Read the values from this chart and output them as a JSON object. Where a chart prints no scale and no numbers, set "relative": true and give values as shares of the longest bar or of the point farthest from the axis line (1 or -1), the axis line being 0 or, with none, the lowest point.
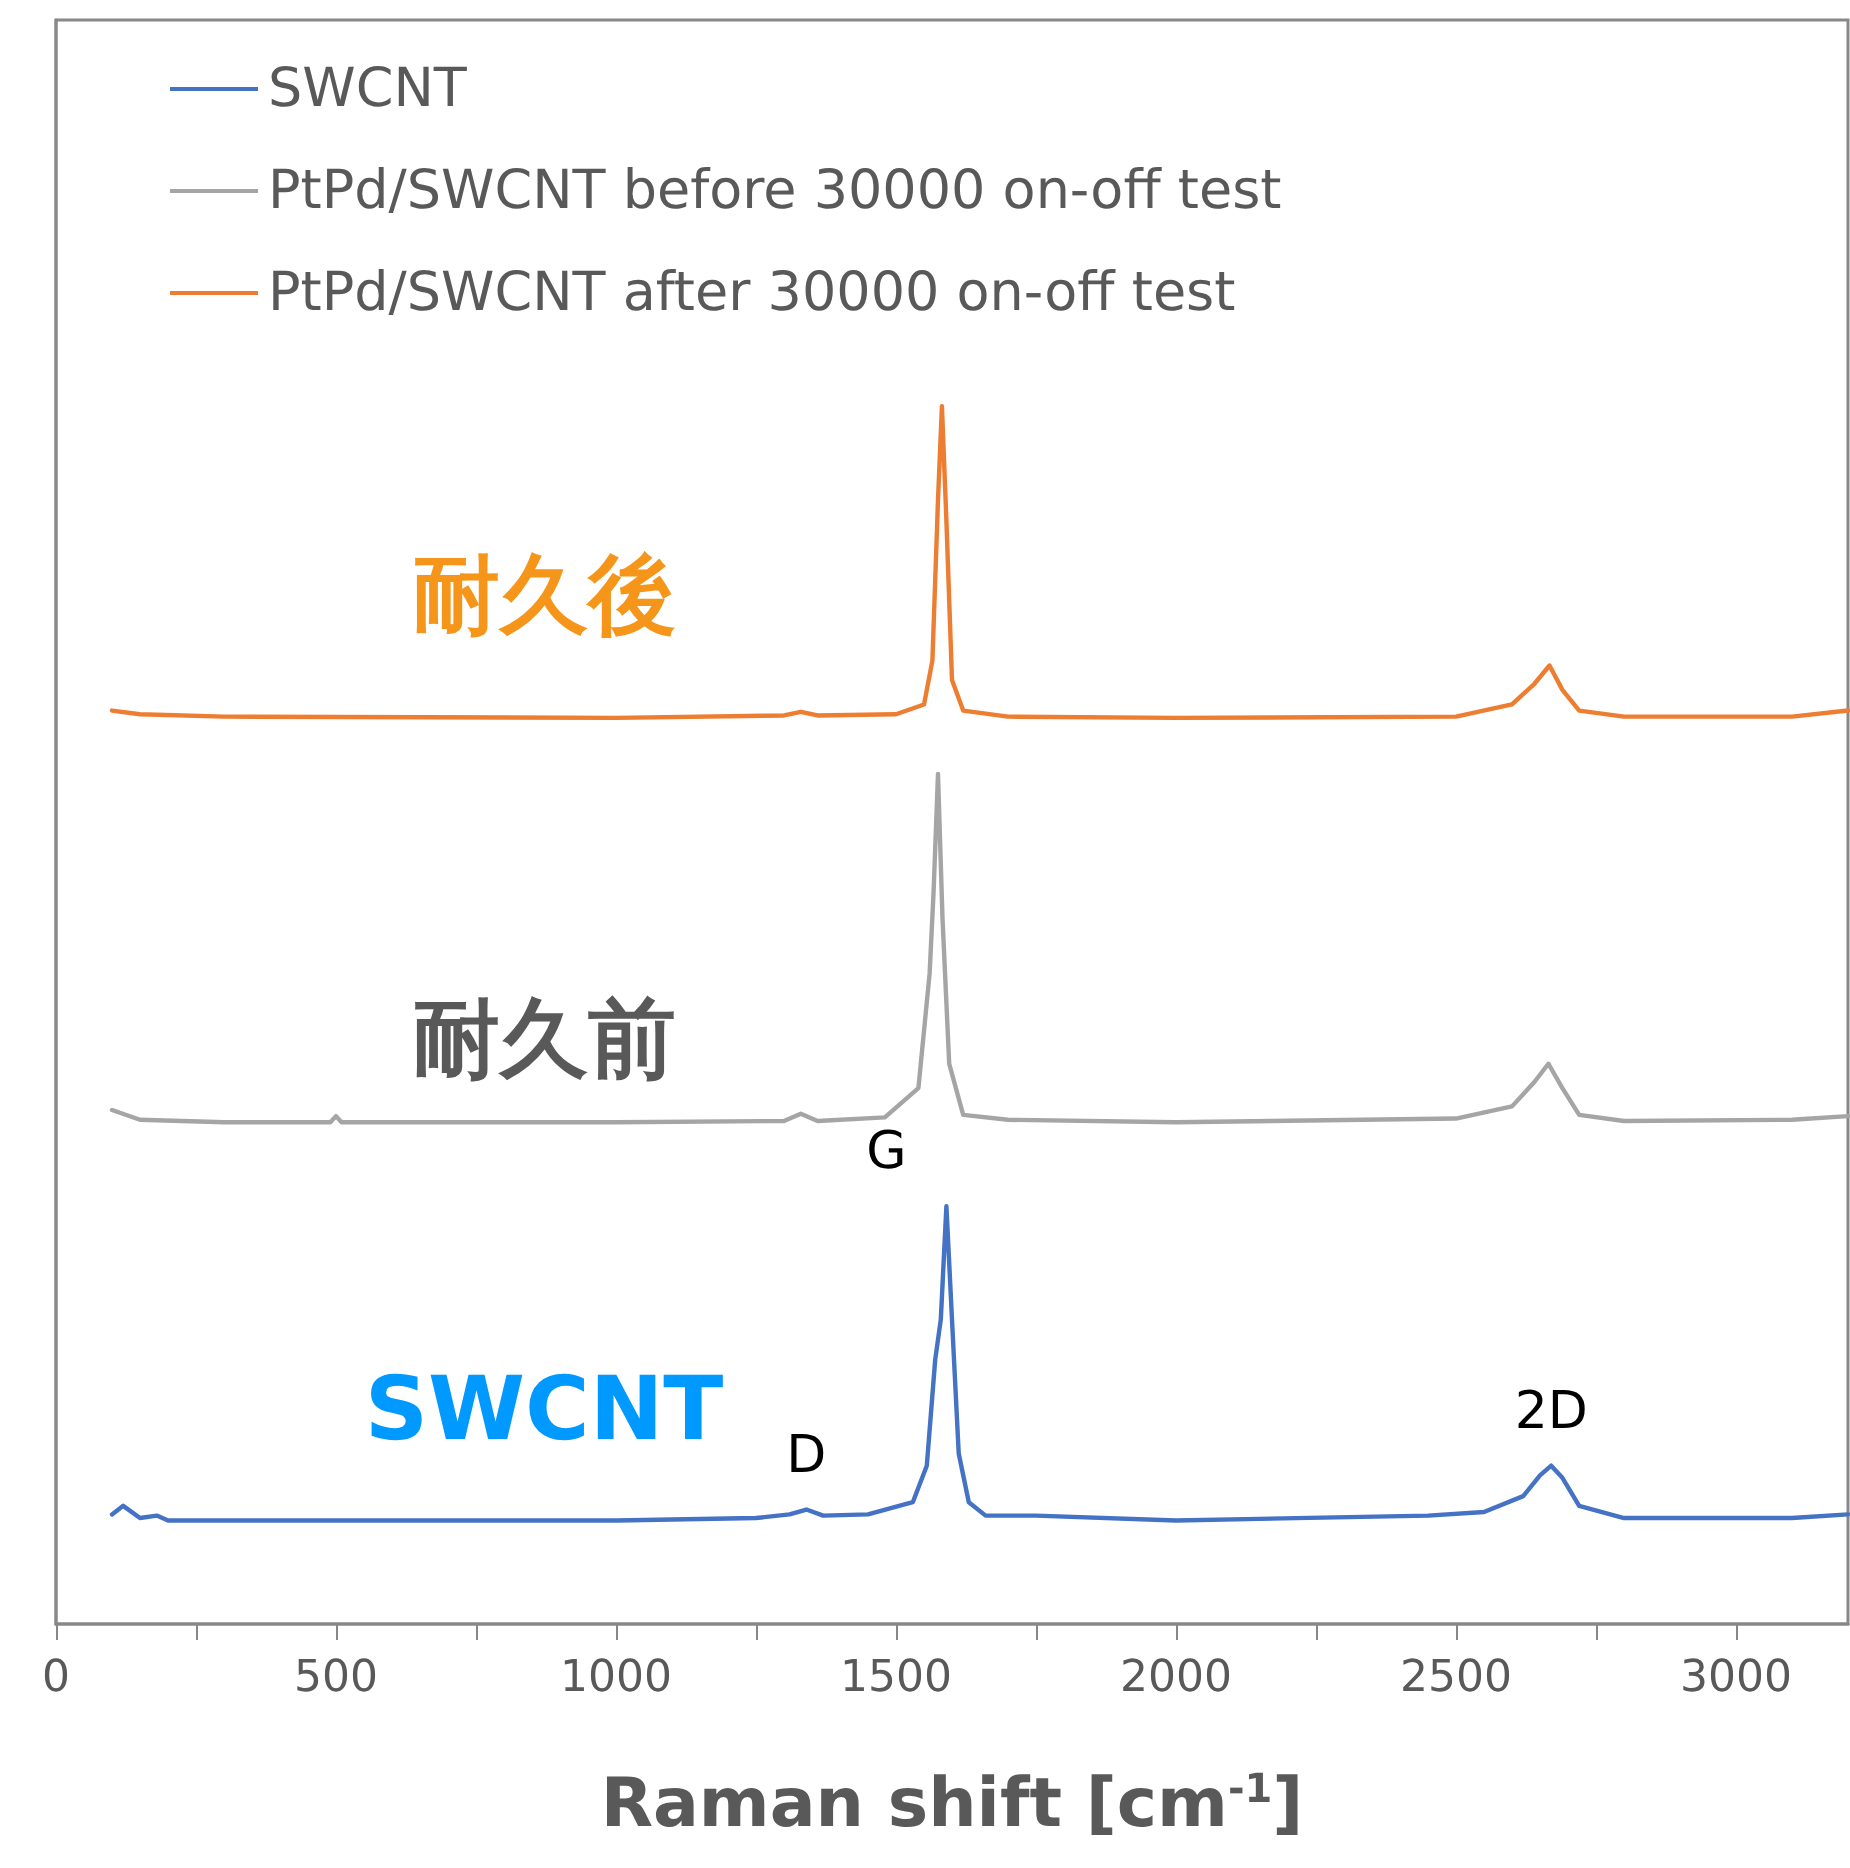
{
  "chart_data": {
    "type": "line",
    "relative": true,
    "xlabel": "Raman shift [cm$^{-1}$]",
    "xlim": [
      0,
      3200
    ],
    "xticks": [
      0,
      {
        "value": 250,
        "label": null
      },
      500,
      {
        "value": 750,
        "label": null
      },
      1000,
      {
        "value": 1250,
        "label": null
      },
      1500,
      {
        "value": 1750,
        "label": null
      },
      2000,
      {
        "value": 2250,
        "label": null
      },
      2500,
      {
        "value": 2750,
        "label": null
      },
      3000
    ],
    "tick_labels": "x",
    "grid": false,
    "legend": "top left",
    "marker": "none",
    "line_style": "solid",
    "series": [
      {
        "name": "SWCNT",
        "color": "#4472c4",
        "x": [
          100,
          120,
          150,
          180,
          200,
          500,
          1000,
          1250,
          1310,
          1340,
          1370,
          1450,
          1530,
          1555,
          1570,
          1580,
          1590,
          1600,
          1612,
          1630,
          1660,
          1750,
          2000,
          2450,
          2550,
          2620,
          2650,
          2670,
          2690,
          2720,
          2800,
          3100,
          3200
        ],
        "values": [
          0.09,
          0.097,
          0.087,
          0.089,
          0.085,
          0.085,
          0.085,
          0.087,
          0.09,
          0.094,
          0.089,
          0.09,
          0.1,
          0.13,
          0.217,
          0.25,
          0.343,
          0.25,
          0.14,
          0.1,
          0.089,
          0.089,
          0.085,
          0.089,
          0.092,
          0.105,
          0.122,
          0.13,
          0.12,
          0.097,
          0.087,
          0.087,
          0.09
        ]
      },
      {
        "name": "PtPd/SWCNT before 30000 on-off test",
        "color": "#a5a5a5",
        "x": [
          100,
          150,
          300,
          490,
          500,
          510,
          1000,
          1300,
          1330,
          1360,
          1480,
          1540,
          1560,
          1567,
          1575,
          1583,
          1595,
          1620,
          1700,
          2000,
          2500,
          2600,
          2640,
          2665,
          2690,
          2720,
          2800,
          3100,
          3200
        ],
        "values": [
          0.422,
          0.414,
          0.412,
          0.412,
          0.417,
          0.412,
          0.412,
          0.413,
          0.419,
          0.413,
          0.416,
          0.44,
          0.534,
          0.6,
          0.698,
          0.58,
          0.46,
          0.418,
          0.414,
          0.412,
          0.415,
          0.425,
          0.445,
          0.46,
          0.44,
          0.418,
          0.413,
          0.414,
          0.417
        ]
      },
      {
        "name": "PtPd/SWCNT after 30000 on-off test",
        "color": "#ed7d31",
        "x": [
          100,
          150,
          300,
          1000,
          1300,
          1330,
          1360,
          1500,
          1550,
          1565,
          1575,
          1582,
          1590,
          1600,
          1620,
          1700,
          2000,
          2500,
          2600,
          2640,
          2667,
          2690,
          2720,
          2800,
          3100,
          3200
        ],
        "values": [
          0.75,
          0.747,
          0.745,
          0.744,
          0.746,
          0.749,
          0.746,
          0.747,
          0.755,
          0.791,
          0.923,
          1,
          0.906,
          0.775,
          0.75,
          0.745,
          0.744,
          0.745,
          0.755,
          0.772,
          0.787,
          0.767,
          0.75,
          0.745,
          0.745,
          0.75
        ]
      }
    ],
    "annotations": [
      "耐久後",
      "耐久前",
      "SWCNT",
      {
        "text": "D",
        "x": 1340,
        "y": 0.094
      },
      {
        "text": "G",
        "x": 1590,
        "y": 0.343
      },
      {
        "text": "2D",
        "x": 2670,
        "y": 0.13
      }
    ]
  }
}
